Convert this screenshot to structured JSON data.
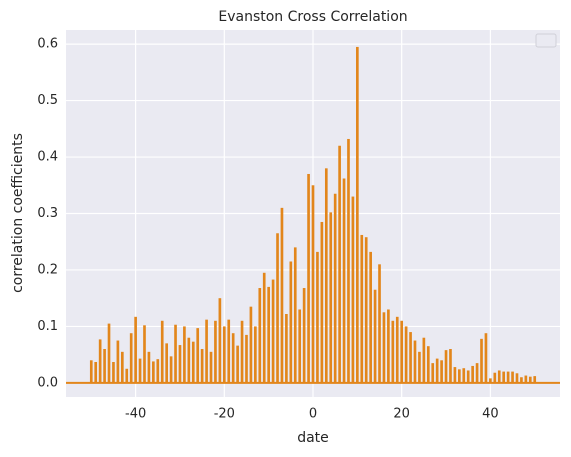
{
  "chart_data": {
    "type": "bar",
    "title": "Evanston Cross Correlation",
    "x_label": "date",
    "y_label": "correlation coefficients",
    "x": [
      -50,
      -49,
      -48,
      -47,
      -46,
      -45,
      -44,
      -43,
      -42,
      -41,
      -40,
      -39,
      -38,
      -37,
      -36,
      -35,
      -34,
      -33,
      -32,
      -31,
      -30,
      -29,
      -28,
      -27,
      -26,
      -25,
      -24,
      -23,
      -22,
      -21,
      -20,
      -19,
      -18,
      -17,
      -16,
      -15,
      -14,
      -13,
      -12,
      -11,
      -10,
      -9,
      -8,
      -7,
      -6,
      -5,
      -4,
      -3,
      -2,
      -1,
      0,
      1,
      2,
      3,
      4,
      5,
      6,
      7,
      8,
      9,
      10,
      11,
      12,
      13,
      14,
      15,
      16,
      17,
      18,
      19,
      20,
      21,
      22,
      23,
      24,
      25,
      26,
      27,
      28,
      29,
      30,
      31,
      32,
      33,
      34,
      35,
      36,
      37,
      38,
      39,
      40,
      41,
      42,
      43,
      44,
      45,
      46,
      47,
      48,
      49,
      50
    ],
    "values": [
      0.04,
      0.037,
      0.077,
      0.06,
      0.105,
      0.037,
      0.075,
      0.055,
      0.025,
      0.088,
      0.117,
      0.043,
      0.102,
      0.055,
      0.038,
      0.042,
      0.11,
      0.07,
      0.047,
      0.103,
      0.067,
      0.1,
      0.08,
      0.073,
      0.097,
      0.06,
      0.112,
      0.055,
      0.11,
      0.15,
      0.1,
      0.112,
      0.088,
      0.066,
      0.11,
      0.085,
      0.135,
      0.1,
      0.168,
      0.195,
      0.17,
      0.183,
      0.265,
      0.31,
      0.122,
      0.215,
      0.24,
      0.13,
      0.168,
      0.37,
      0.35,
      0.232,
      0.285,
      0.38,
      0.302,
      0.335,
      0.42,
      0.362,
      0.432,
      0.33,
      0.595,
      0.262,
      0.258,
      0.232,
      0.165,
      0.21,
      0.125,
      0.13,
      0.11,
      0.117,
      0.11,
      0.1,
      0.09,
      0.075,
      0.055,
      0.08,
      0.065,
      0.035,
      0.043,
      0.04,
      0.058,
      0.06,
      0.028,
      0.024,
      0.026,
      0.022,
      0.03,
      0.035,
      0.078,
      0.088,
      0.008,
      0.018,
      0.022,
      0.02,
      0.02,
      0.02,
      0.017,
      0.01,
      0.013,
      0.011,
      0.012
    ],
    "color": "#e2861b",
    "xlim": [
      -55.7,
      55.7
    ],
    "xticks": [
      -40,
      -20,
      0,
      20,
      40
    ],
    "ylim": [
      -0.025,
      0.625
    ],
    "yticks": [
      {
        "value": 0,
        "label": "0.0"
      },
      0.1,
      0.2,
      0.3,
      0.4,
      0.5,
      0.6
    ],
    "grid": true
  }
}
